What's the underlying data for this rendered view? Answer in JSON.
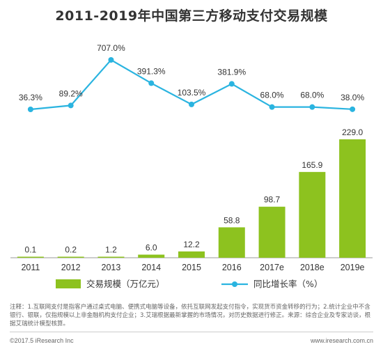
{
  "title": "2011-2019年中国第三方移动支付交易规模",
  "chart_data": {
    "type": "bar+line",
    "categories": [
      "2011",
      "2012",
      "2013",
      "2014",
      "2015",
      "2016",
      "2017e",
      "2018e",
      "2019e"
    ],
    "series": [
      {
        "name": "交易规模（万亿元）",
        "type": "bar",
        "color": "#8dc21f",
        "values": [
          0.1,
          0.2,
          1.2,
          6.0,
          12.2,
          58.8,
          98.7,
          165.9,
          229.0
        ],
        "labels": [
          "0.1",
          "0.2",
          "1.2",
          "6.0",
          "12.2",
          "58.8",
          "98.7",
          "165.9",
          "229.0"
        ]
      },
      {
        "name": "同比增长率（%）",
        "type": "line",
        "color": "#2ab4e0",
        "values": [
          36.3,
          89.2,
          707.0,
          391.3,
          103.5,
          381.9,
          68.0,
          68.0,
          38.0
        ],
        "labels": [
          "36.3%",
          "89.2%",
          "707.0%",
          "391.3%",
          "103.5%",
          "381.9%",
          "68.0%",
          "68.0%",
          "38.0%"
        ]
      }
    ],
    "legend_position": "bottom"
  },
  "notes": "注释：1.互联网支付是指客户通过桌式电脑、便携式电脑等设备，依托互联网发起支付指令，实现货币资金转移的行为；2.统计企业中不含银行、银联，仅指规模以上非金融机构支付企业；3.艾瑞根据最新掌握的市场情况，对历史数据进行修正。来源：综合企业及专家访谈，根据艾瑞统计模型核算。",
  "footer": {
    "left": "©2017.5 iResearch Inc",
    "right": "www.iresearch.com.cn"
  }
}
